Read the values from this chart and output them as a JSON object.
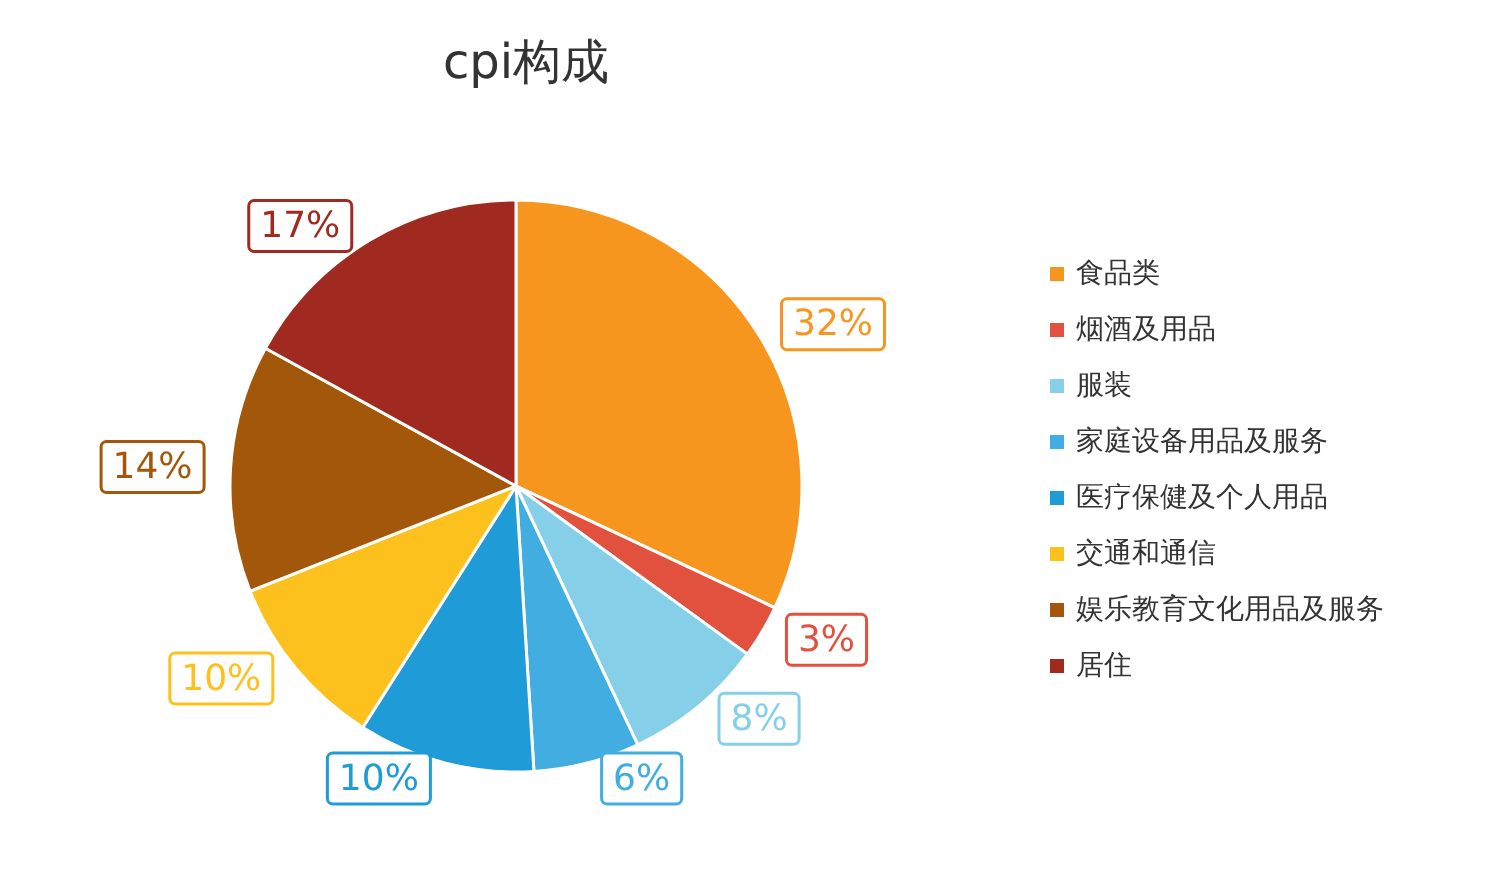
{
  "chart_data": {
    "type": "pie",
    "title": "cpi构成",
    "categories": [
      "食品类",
      "烟酒及用品",
      "服装",
      "家庭设备用品及服务",
      "医疗保健及个人用品",
      "交通和通信",
      "娱乐教育文化用品及服务",
      "居住"
    ],
    "values": [
      32,
      3,
      8,
      6,
      10,
      10,
      14,
      17
    ],
    "value_labels": [
      "32%",
      "3%",
      "8%",
      "6%",
      "10%",
      "10%",
      "14%",
      "17%"
    ],
    "colors": [
      "#f7961e",
      "#e2503e",
      "#85d0e8",
      "#41ade0",
      "#1f9bd7",
      "#fcc11c",
      "#a3570b",
      "#a02a1f"
    ],
    "legend": "right"
  }
}
